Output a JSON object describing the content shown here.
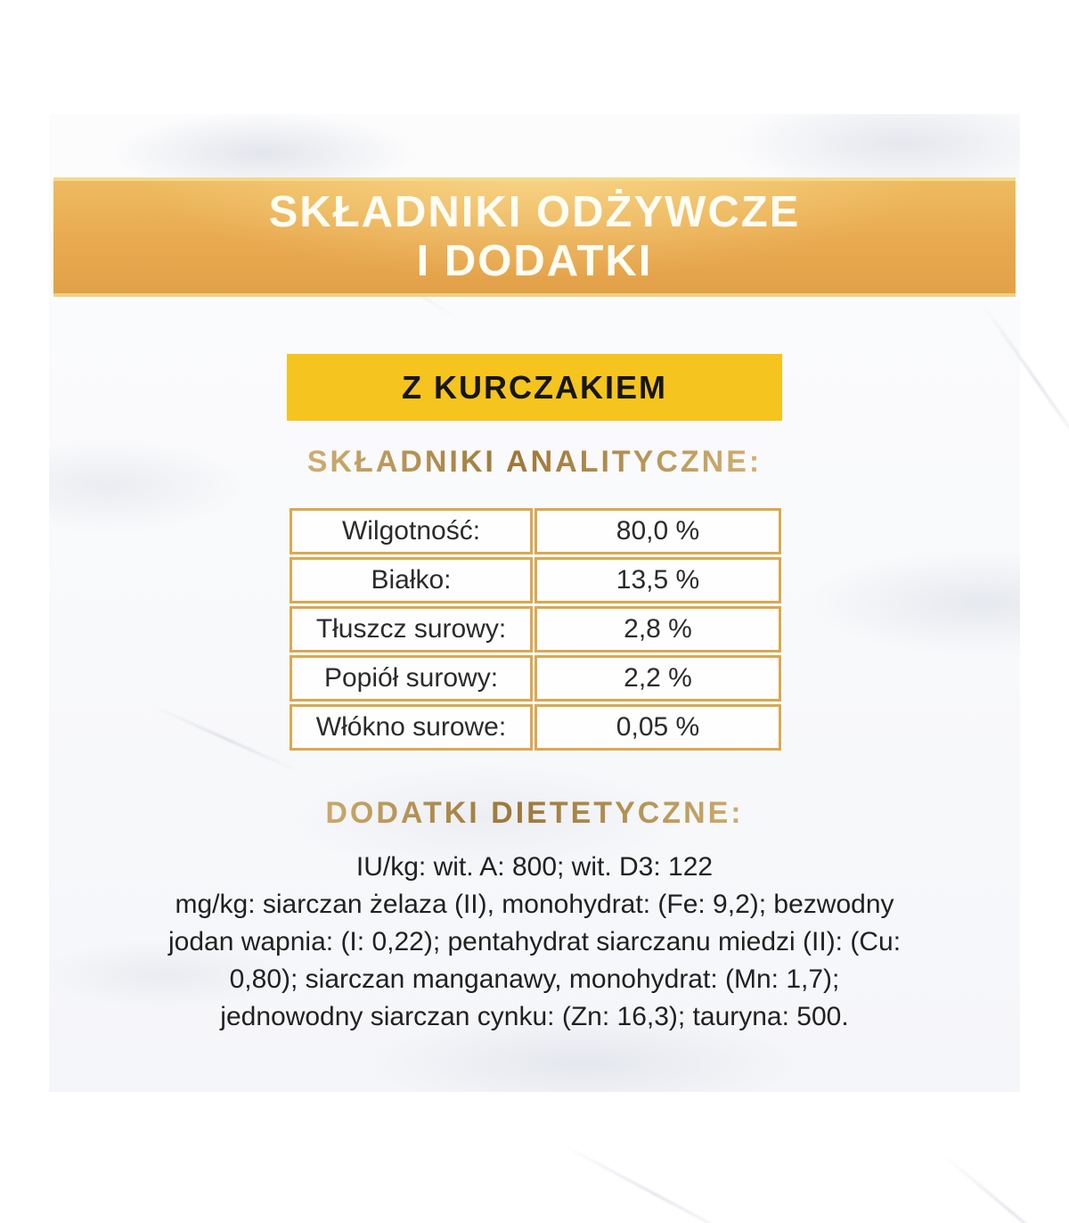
{
  "header": {
    "title_line1": "SKŁADNIKI ODŻYWCZE",
    "title_line2": "I DODATKI"
  },
  "variant": {
    "label": "Z KURCZAKIEM"
  },
  "analytical": {
    "heading": "SKŁADNIKI ANALITYCZNE:",
    "table": {
      "rows": [
        {
          "label": "Wilgotność:",
          "value": "80,0 %"
        },
        {
          "label": "Białko:",
          "value": "13,5 %"
        },
        {
          "label": "Tłuszcz surowy:",
          "value": "2,8 %"
        },
        {
          "label": "Popiół surowy:",
          "value": "2,2 %"
        },
        {
          "label": "Włókno surowe:",
          "value": "0,05 %"
        }
      ]
    }
  },
  "additives": {
    "heading": "DODATKI DIETETYCZNE:",
    "lines": [
      "IU/kg: wit. A: 800; wit. D3: 122",
      "mg/kg: siarczan żelaza (II), monohydrat: (Fe: 9,2); bezwodny",
      "jodan wapnia: (I: 0,22); pentahydrat siarczanu miedzi (II): (Cu:",
      "0,80); siarczan manganawy, monohydrat: (Mn: 1,7);",
      "jednowodny siarczan cynku: (Zn: 16,3); tauryna: 500."
    ]
  },
  "colors": {
    "banner_gold_light": "#F2C877",
    "banner_gold_dark": "#E2A148",
    "banner_edge_line": "#F4D98F",
    "variant_yellow": "#F5C41E",
    "table_border_gold": "#D9A94F",
    "heading_gold": "#B18A4C",
    "text_dark": "#212121",
    "banner_text": "#FFFDF4"
  }
}
